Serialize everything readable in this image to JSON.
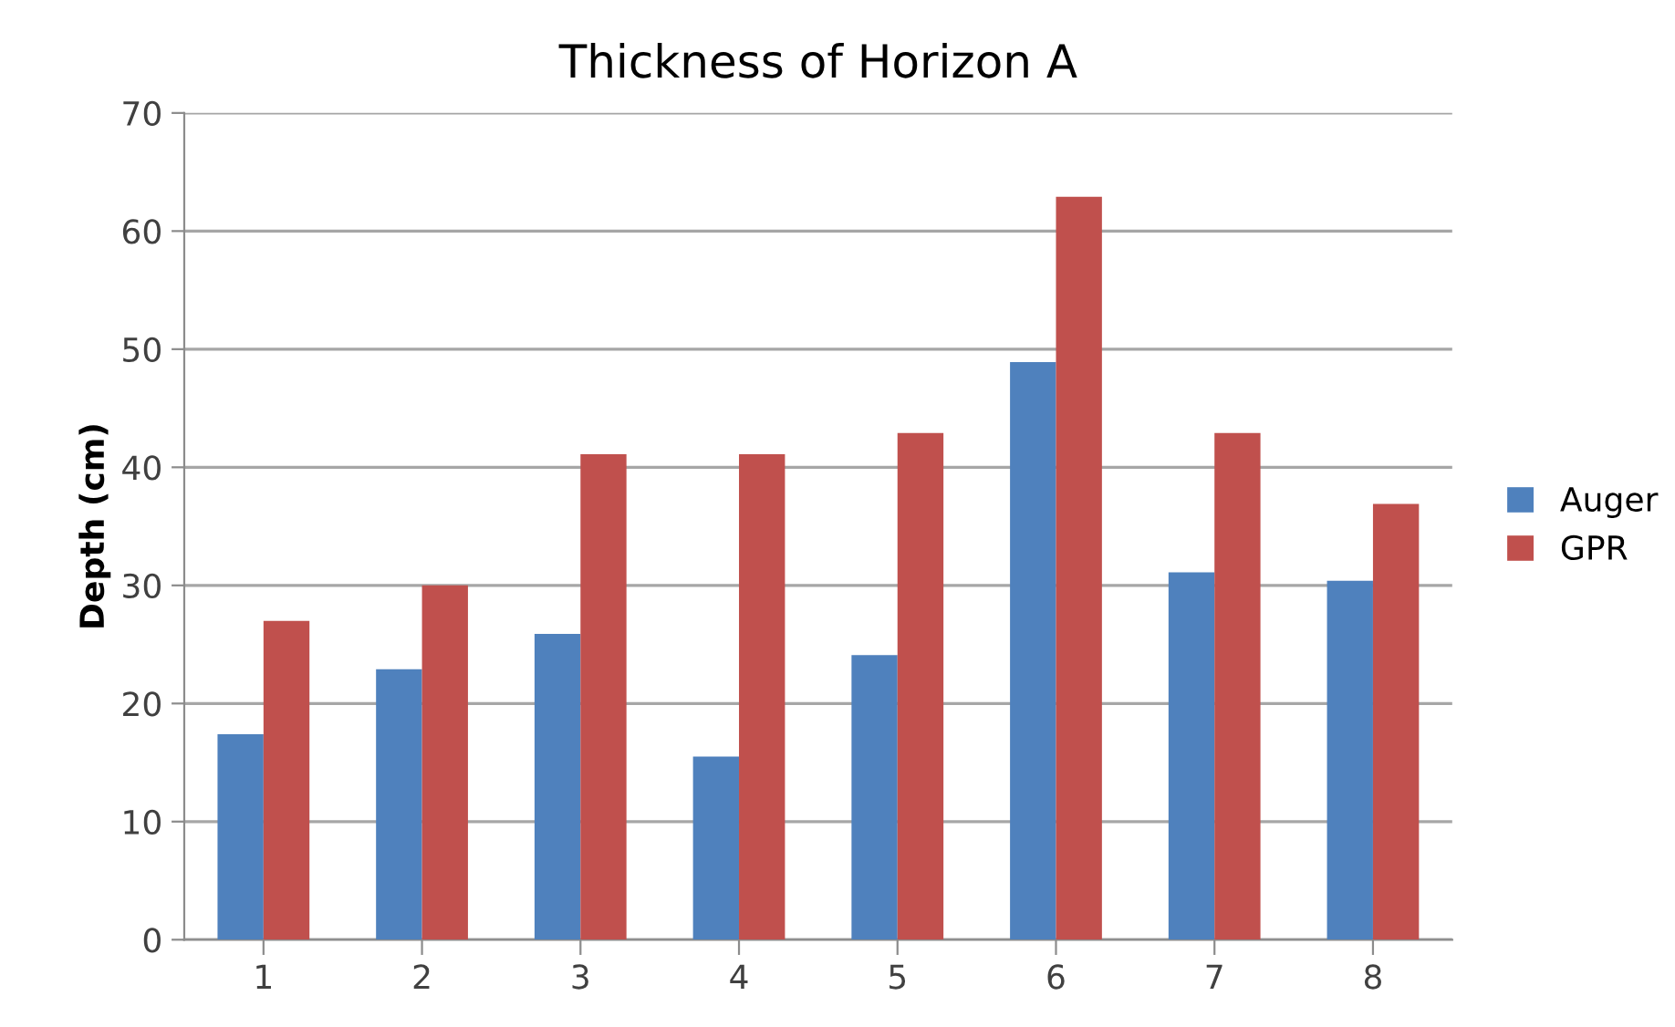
{
  "chart_data": {
    "type": "bar",
    "title": "Thickness of Horizon A",
    "ylabel": "Depth (cm)",
    "categories": [
      "1",
      "2",
      "3",
      "4",
      "5",
      "6",
      "7",
      "8"
    ],
    "series": [
      {
        "name": "Auger",
        "color": "#4f81bd",
        "values": [
          17.4,
          22.9,
          25.9,
          15.5,
          24.1,
          48.9,
          31.1,
          30.4
        ]
      },
      {
        "name": "GPR",
        "color": "#c0504d",
        "values": [
          27,
          30,
          41.1,
          41.1,
          42.9,
          62.9,
          42.9,
          36.9
        ]
      }
    ],
    "ylim": [
      0,
      70
    ],
    "yticks": [
      0,
      10,
      20,
      30,
      40,
      50,
      60,
      70
    ],
    "grid": "y",
    "legend": "right"
  }
}
